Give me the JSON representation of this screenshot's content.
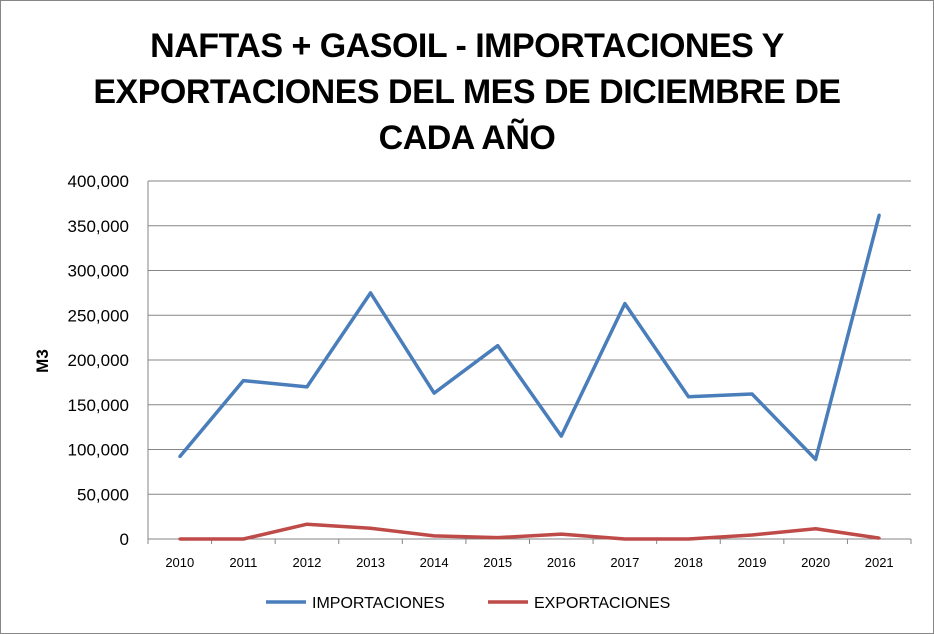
{
  "chart_data": {
    "type": "line",
    "title_lines": [
      "NAFTAS + GASOIL - IMPORTACIONES Y",
      "EXPORTACIONES DEL MES DE DICIEMBRE DE",
      "CADA AÑO"
    ],
    "xlabel": "",
    "ylabel": "M3",
    "ylim": [
      0,
      400000
    ],
    "yticks": [
      0,
      50000,
      100000,
      150000,
      200000,
      250000,
      300000,
      350000,
      400000
    ],
    "ytick_labels": [
      "0",
      "50,000",
      "100,000",
      "150,000",
      "200,000",
      "250,000",
      "300,000",
      "350,000",
      "400,000"
    ],
    "categories": [
      "2010",
      "2011",
      "2012",
      "2013",
      "2014",
      "2015",
      "2016",
      "2017",
      "2018",
      "2019",
      "2020",
      "2021"
    ],
    "grid": true,
    "legend_position": "bottom",
    "series": [
      {
        "name": "IMPORTACIONES",
        "color": "#4a7ebb",
        "values": [
          92000,
          177000,
          170000,
          275000,
          163000,
          216000,
          115000,
          263000,
          159000,
          162000,
          89000,
          362000
        ]
      },
      {
        "name": "EXPORTACIONES",
        "color": "#be4b48",
        "values": [
          0,
          0,
          16500,
          12000,
          3500,
          1500,
          5500,
          0,
          0,
          4500,
          11500,
          1000
        ]
      }
    ]
  }
}
